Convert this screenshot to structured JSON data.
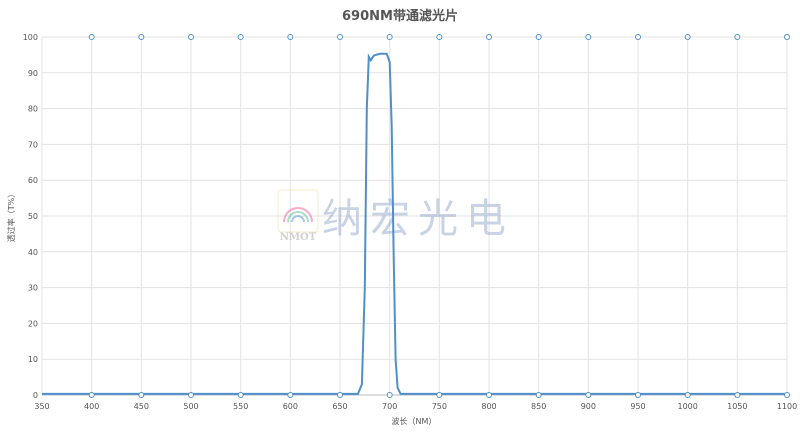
{
  "chart_data": {
    "type": "line",
    "title": "690NM带通滤光片",
    "xlabel": "波长（NM）",
    "ylabel": "透过率（T%）",
    "xlim": [
      350,
      1100
    ],
    "ylim": [
      0,
      100
    ],
    "xticks": [
      350,
      400,
      450,
      500,
      550,
      600,
      650,
      700,
      750,
      800,
      850,
      900,
      950,
      1000,
      1050,
      1100
    ],
    "yticks": [
      0,
      10,
      20,
      30,
      40,
      50,
      60,
      70,
      80,
      90,
      100
    ],
    "grid": true,
    "line_color": "#4f8fca",
    "series": [
      {
        "x": [
          350,
          400,
          450,
          500,
          550,
          600,
          650,
          668,
          672,
          675,
          677,
          679,
          681,
          684,
          690,
          697,
          700,
          702,
          704,
          706,
          708,
          711,
          750,
          800,
          850,
          900,
          950,
          1000,
          1050,
          1100
        ],
        "y": [
          0.3,
          0.3,
          0.3,
          0.3,
          0.3,
          0.3,
          0.3,
          0.3,
          3,
          30,
          80,
          94.5,
          93.5,
          94.8,
          95.3,
          95.3,
          93,
          75,
          40,
          10,
          2,
          0.3,
          0.3,
          0.3,
          0.3,
          0.3,
          0.3,
          0.3,
          0.3,
          0.3
        ]
      }
    ]
  },
  "watermark": {
    "logo_text": "NMOT",
    "text": "纳宏光电"
  }
}
